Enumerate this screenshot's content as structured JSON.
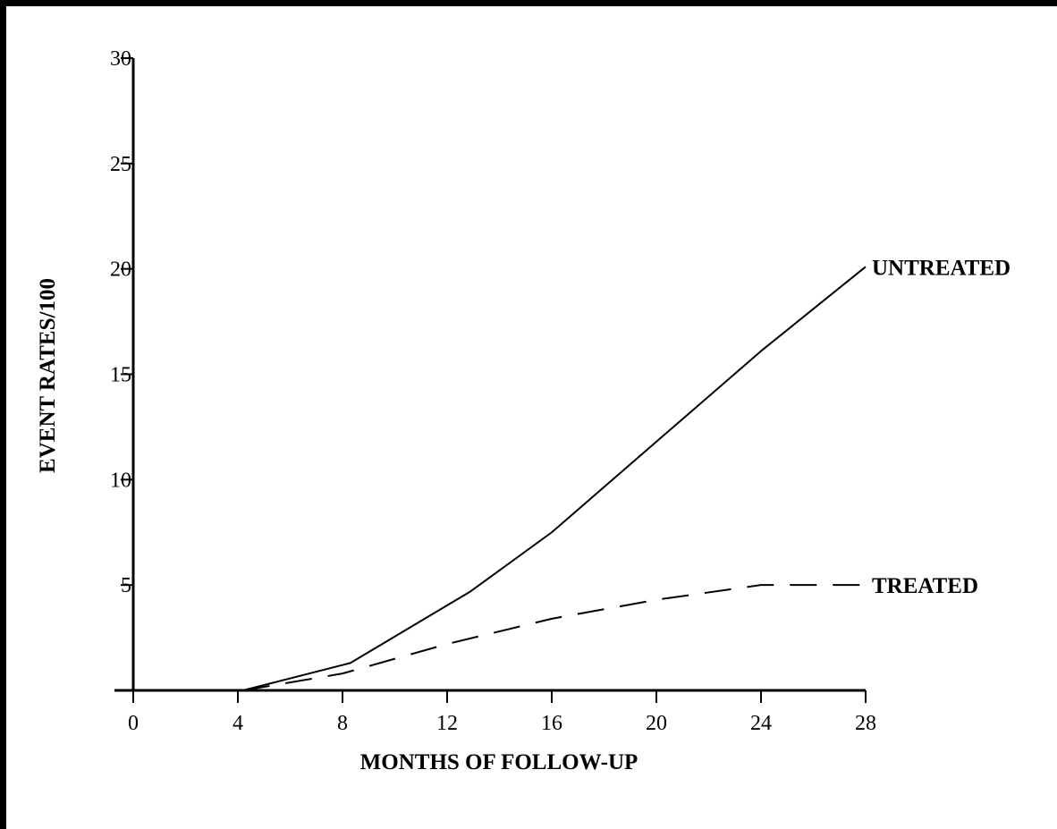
{
  "chart_data": {
    "type": "line",
    "title": "",
    "xlabel": "MONTHS OF FOLLOW-UP",
    "ylabel": "EVENT RATES/100",
    "xlim": [
      0,
      28
    ],
    "ylim": [
      0,
      30
    ],
    "x_ticks": [
      0,
      4,
      8,
      12,
      16,
      20,
      24,
      28
    ],
    "y_ticks": [
      5,
      10,
      15,
      20,
      25,
      30
    ],
    "grid": false,
    "legend": "none",
    "series": [
      {
        "name": "UNTREATED",
        "style": "solid",
        "x": [
          4.2,
          8.3,
          12.9,
          16.0,
          20.0,
          24.0,
          28.0
        ],
        "y": [
          0,
          1.3,
          4.7,
          7.5,
          11.8,
          16.1,
          20.1
        ]
      },
      {
        "name": "TREATED",
        "style": "dashed",
        "x": [
          4.2,
          8.0,
          12.0,
          16.0,
          20.0,
          24.0,
          28.0
        ],
        "y": [
          0,
          0.8,
          2.2,
          3.4,
          4.3,
          5.0,
          5.0
        ]
      }
    ]
  }
}
